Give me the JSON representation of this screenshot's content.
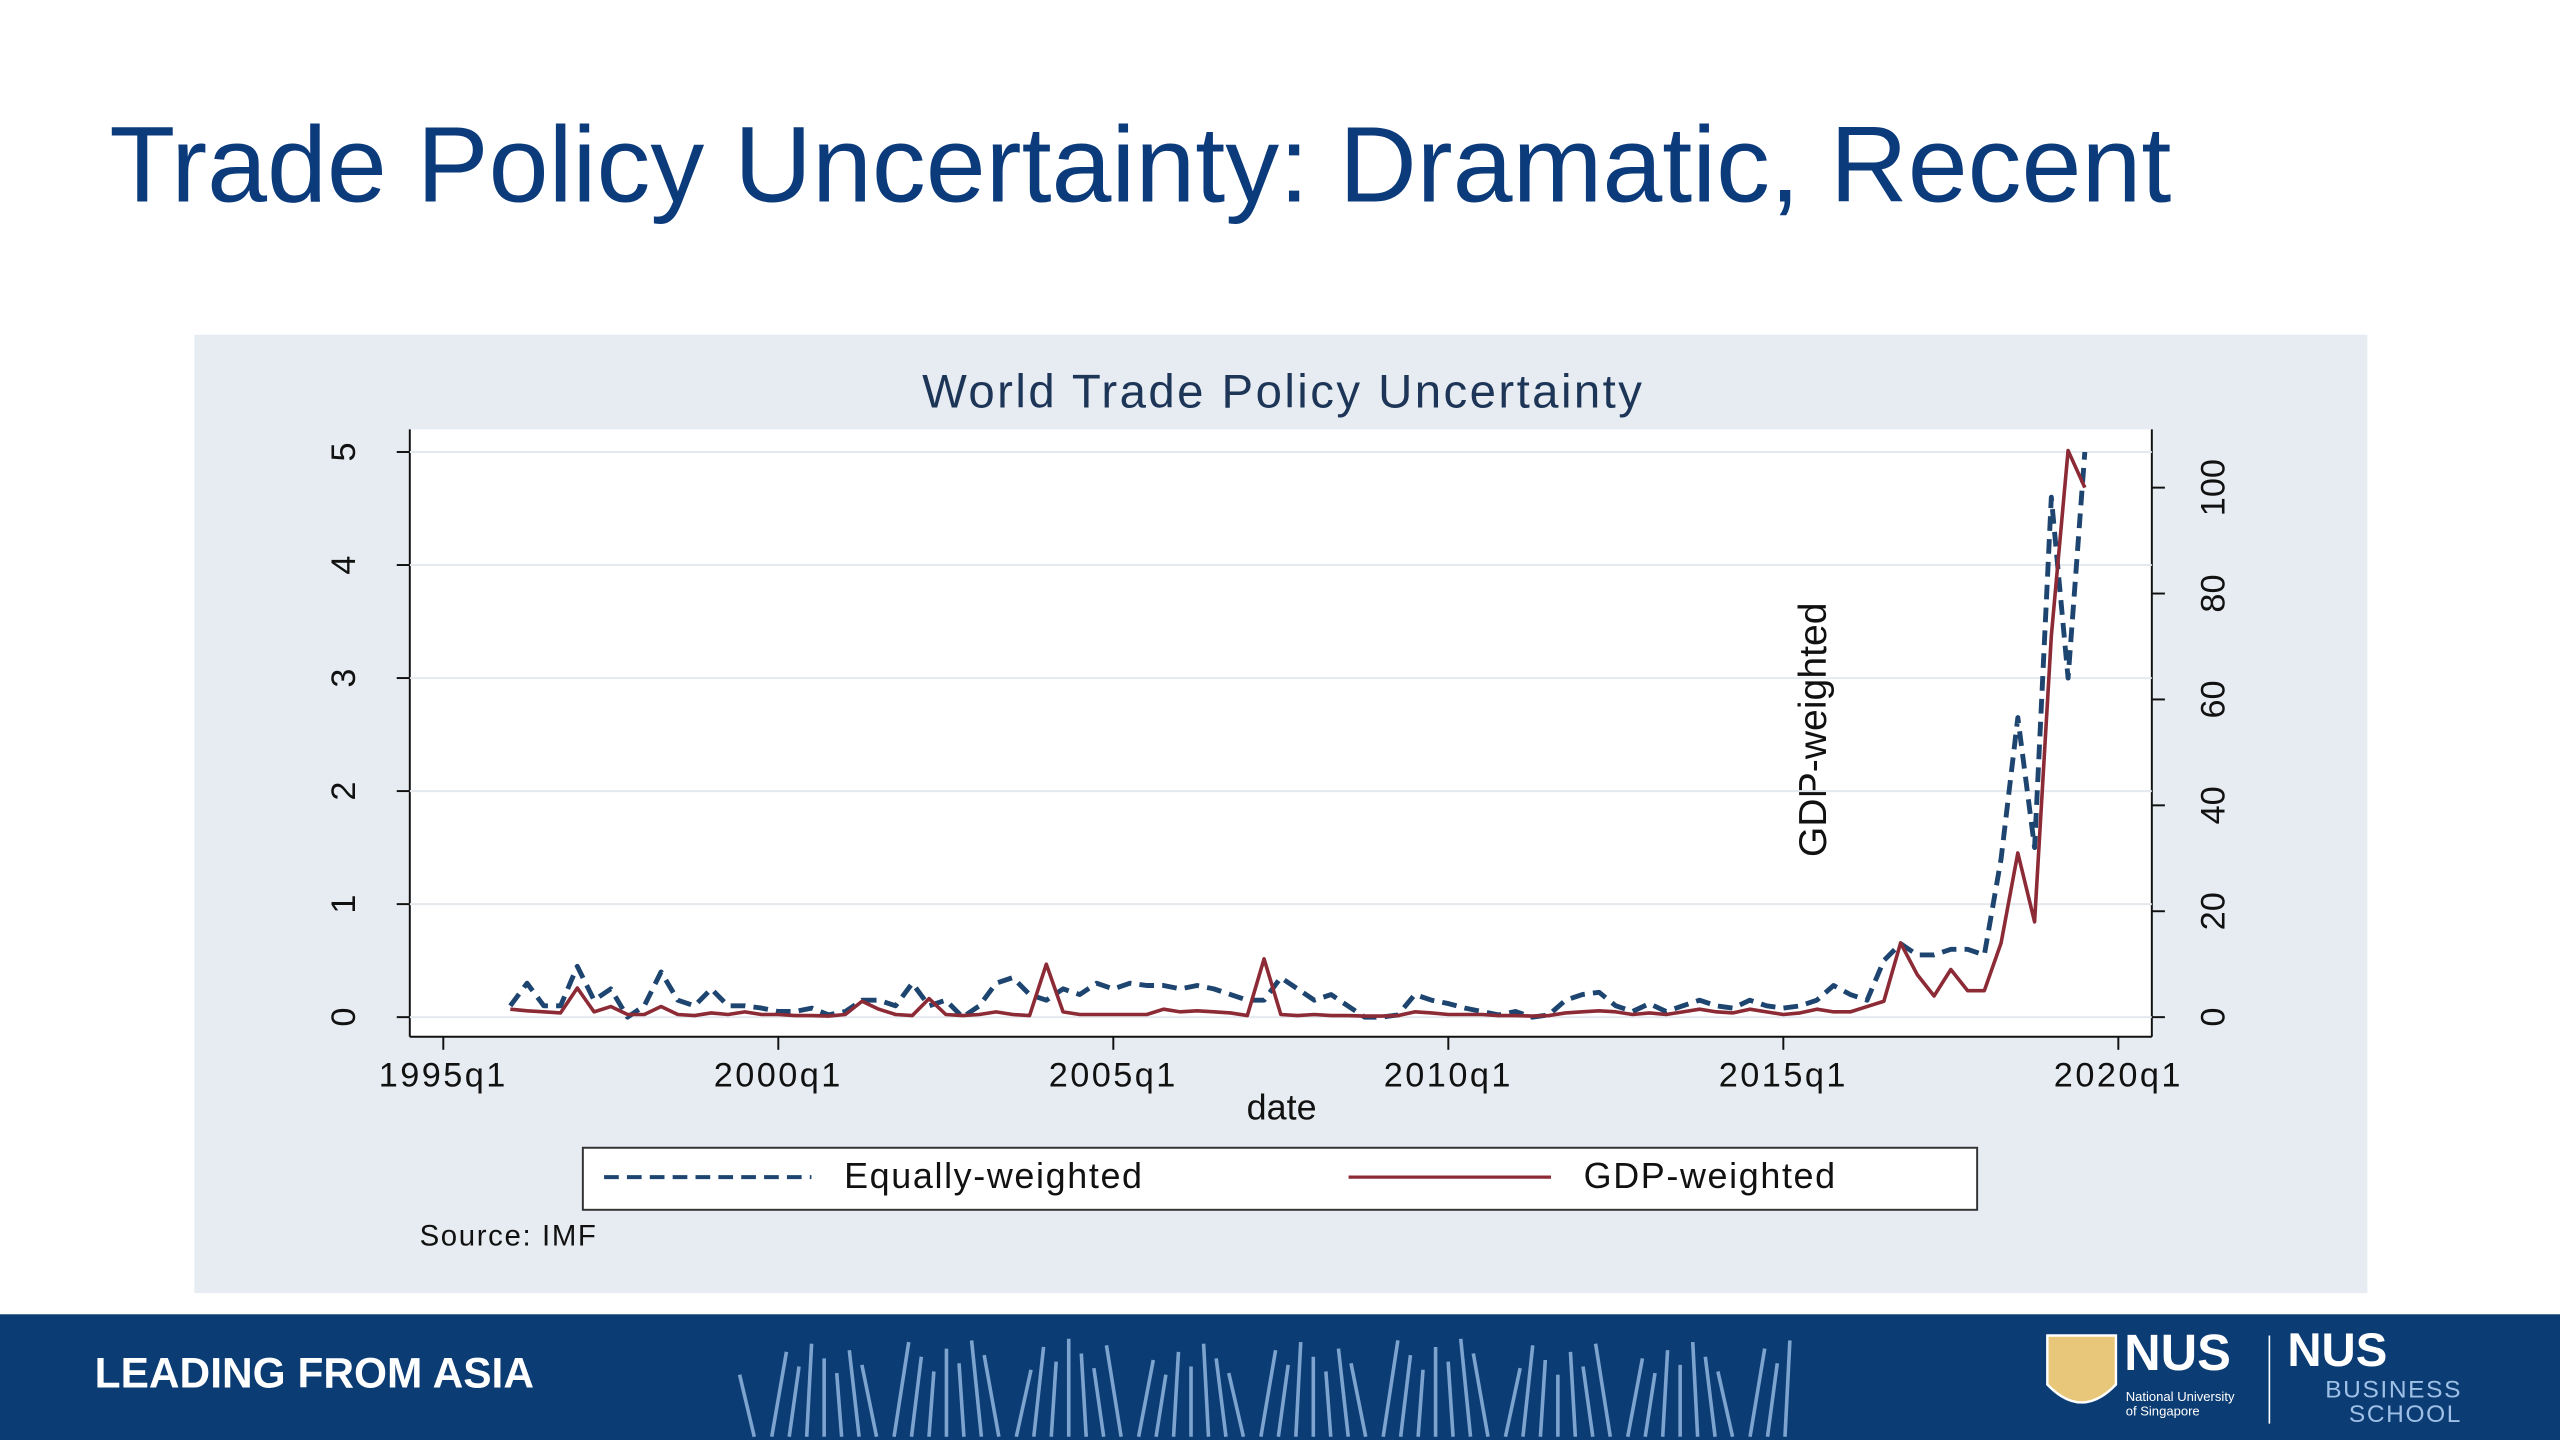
{
  "slide": {
    "title": "Trade Policy Uncertainty: Dramatic, Recent",
    "footer": "LEADING FROM ASIA",
    "logo_nus": "NUS",
    "logo_nus_sub1": "National University",
    "logo_nus_sub2": "of Singapore",
    "logo_bs": "NUS",
    "logo_bs_sub1": "BUSINESS",
    "logo_bs_sub2": "SCHOOL"
  },
  "chart_data": {
    "type": "line",
    "title": "World Trade Policy Uncertainty",
    "xlabel": "date",
    "source": "Source: IMF",
    "annotation": "GDP-weighted",
    "x": [
      "1996q1",
      "1996q2",
      "1996q3",
      "1996q4",
      "1997q1",
      "1997q2",
      "1997q3",
      "1997q4",
      "1998q1",
      "1998q2",
      "1998q3",
      "1998q4",
      "1999q1",
      "1999q2",
      "1999q3",
      "1999q4",
      "2000q1",
      "2000q2",
      "2000q3",
      "2000q4",
      "2001q1",
      "2001q2",
      "2001q3",
      "2001q4",
      "2002q1",
      "2002q2",
      "2002q3",
      "2002q4",
      "2003q1",
      "2003q2",
      "2003q3",
      "2003q4",
      "2004q1",
      "2004q2",
      "2004q3",
      "2004q4",
      "2005q1",
      "2005q2",
      "2005q3",
      "2005q4",
      "2006q1",
      "2006q2",
      "2006q3",
      "2006q4",
      "2007q1",
      "2007q2",
      "2007q3",
      "2007q4",
      "2008q1",
      "2008q2",
      "2008q3",
      "2008q4",
      "2009q1",
      "2009q2",
      "2009q3",
      "2009q4",
      "2010q1",
      "2010q2",
      "2010q3",
      "2010q4",
      "2011q1",
      "2011q2",
      "2011q3",
      "2011q4",
      "2012q1",
      "2012q2",
      "2012q3",
      "2012q4",
      "2013q1",
      "2013q2",
      "2013q3",
      "2013q4",
      "2014q1",
      "2014q2",
      "2014q3",
      "2014q4",
      "2015q1",
      "2015q2",
      "2015q3",
      "2015q4",
      "2016q1",
      "2016q2",
      "2016q3",
      "2016q4",
      "2017q1",
      "2017q2",
      "2017q3",
      "2017q4",
      "2018q1",
      "2018q2",
      "2018q3",
      "2018q4",
      "2019q1",
      "2019q2",
      "2019q3"
    ],
    "series": [
      {
        "name": "Equally-weighted",
        "color": "#1d4570",
        "dash": true,
        "values": [
          0.1,
          0.3,
          0.1,
          0.1,
          0.45,
          0.15,
          0.25,
          0.0,
          0.1,
          0.4,
          0.15,
          0.1,
          0.25,
          0.1,
          0.1,
          0.08,
          0.05,
          0.05,
          0.08,
          0.02,
          0.05,
          0.15,
          0.15,
          0.1,
          0.3,
          0.1,
          0.15,
          0.0,
          0.1,
          0.3,
          0.35,
          0.2,
          0.15,
          0.25,
          0.2,
          0.3,
          0.25,
          0.3,
          0.28,
          0.28,
          0.25,
          0.28,
          0.25,
          0.2,
          0.15,
          0.15,
          0.35,
          0.25,
          0.15,
          0.2,
          0.1,
          0.0,
          0.0,
          0.02,
          0.2,
          0.15,
          0.12,
          0.08,
          0.05,
          0.02,
          0.05,
          0.0,
          0.02,
          0.15,
          0.2,
          0.22,
          0.1,
          0.05,
          0.12,
          0.05,
          0.1,
          0.15,
          0.1,
          0.08,
          0.15,
          0.1,
          0.08,
          0.1,
          0.15,
          0.28,
          0.2,
          0.15,
          0.5,
          0.65,
          0.55,
          0.55,
          0.6,
          0.6,
          0.55,
          1.4,
          2.65,
          1.5,
          4.6,
          3.0,
          5.0
        ]
      },
      {
        "name": "GDP-weighted",
        "color": "#8c2a36",
        "dash": false,
        "axis": "y2",
        "values": [
          1.5,
          1.2,
          1.0,
          0.8,
          5.5,
          1.0,
          2.0,
          0.5,
          0.5,
          2.0,
          0.5,
          0.3,
          0.8,
          0.5,
          1.0,
          0.5,
          0.5,
          0.3,
          0.3,
          0.2,
          0.5,
          3.0,
          1.5,
          0.5,
          0.3,
          3.5,
          0.5,
          0.3,
          0.5,
          1.0,
          0.5,
          0.3,
          10.0,
          1.0,
          0.5,
          0.5,
          0.5,
          0.5,
          0.5,
          1.5,
          1.0,
          1.2,
          1.0,
          0.8,
          0.3,
          11.0,
          0.5,
          0.3,
          0.5,
          0.3,
          0.3,
          0.2,
          0.2,
          0.3,
          1.0,
          0.8,
          0.5,
          0.5,
          0.5,
          0.3,
          0.3,
          0.2,
          0.3,
          0.8,
          1.0,
          1.2,
          1.0,
          0.5,
          0.8,
          0.5,
          1.0,
          1.5,
          1.0,
          0.8,
          1.5,
          1.0,
          0.5,
          0.8,
          1.5,
          1.0,
          1.0,
          2.0,
          3.0,
          14.0,
          8.0,
          4.0,
          9.0,
          5.0,
          5.0,
          14.0,
          31.0,
          18.0,
          72.0,
          107.0,
          100.0
        ]
      }
    ],
    "xlim": [
      "1994q3",
      "2020q3"
    ],
    "xticks": [
      "1995q1",
      "2000q1",
      "2005q1",
      "2010q1",
      "2015q1",
      "2020q1"
    ],
    "ylim": [
      0,
      5.2
    ],
    "yticks": [
      0,
      1,
      2,
      3,
      4,
      5
    ],
    "y2lim": [
      0,
      111
    ],
    "y2ticks": [
      0,
      20,
      40,
      60,
      80,
      100
    ],
    "grid": true,
    "legend": "bottom"
  }
}
